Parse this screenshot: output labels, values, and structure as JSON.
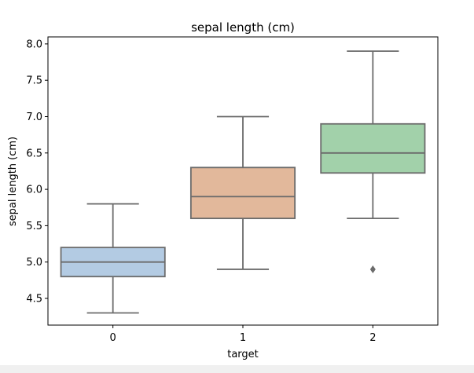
{
  "chart_data": {
    "type": "box",
    "title": "sepal length (cm)",
    "xlabel": "target",
    "ylabel": "sepal length (cm)",
    "ylim": [
      4.3,
      8.1
    ],
    "yticks": [
      4.5,
      5.0,
      5.5,
      6.0,
      6.5,
      7.0,
      7.5,
      8.0
    ],
    "ytick_labels": [
      "4.5",
      "5.0",
      "5.5",
      "6.0",
      "6.5",
      "7.0",
      "7.5",
      "8.0"
    ],
    "categories": [
      "0",
      "1",
      "2"
    ],
    "boxes": [
      {
        "category": "0",
        "whisker_low": 4.3,
        "q1": 4.8,
        "median": 5.0,
        "q3": 5.2,
        "whisker_high": 5.8,
        "outliers": [],
        "color": "#b3cbe3"
      },
      {
        "category": "1",
        "whisker_low": 4.9,
        "q1": 5.6,
        "median": 5.9,
        "q3": 6.3,
        "whisker_high": 7.0,
        "outliers": [],
        "color": "#e2b89b"
      },
      {
        "category": "2",
        "whisker_low": 5.6,
        "q1": 6.225,
        "median": 6.5,
        "q3": 6.9,
        "whisker_high": 7.9,
        "outliers": [
          4.9
        ],
        "color": "#a2d1aa"
      }
    ],
    "line_color": "#6b6b6b",
    "grid": false,
    "legend": "none"
  }
}
